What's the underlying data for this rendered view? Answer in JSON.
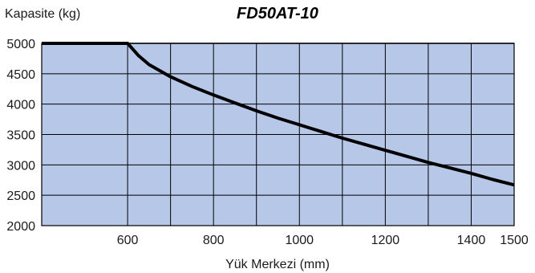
{
  "chart_data": {
    "type": "line",
    "title": "FD50AT-10",
    "xlabel": "Yük Merkezi (mm)",
    "ylabel": "Kapasite (kg)",
    "xlim": [
      400,
      1500
    ],
    "ylim": [
      2000,
      5000
    ],
    "x_ticks": [
      600,
      800,
      1000,
      1200,
      1400,
      1500
    ],
    "y_ticks": [
      2000,
      2500,
      3000,
      3500,
      4000,
      4500,
      5000
    ],
    "x_gridlines": [
      600,
      700,
      800,
      900,
      1000,
      1100,
      1200,
      1300,
      1400,
      1500
    ],
    "y_gridlines": [
      2000,
      2500,
      3000,
      3500,
      4000,
      4500,
      5000
    ],
    "grid": true,
    "series": [
      {
        "x": [
          400,
          500,
          600,
          625,
          650,
          700,
          750,
          800,
          850,
          900,
          950,
          1000,
          1050,
          1100,
          1150,
          1200,
          1250,
          1300,
          1350,
          1400,
          1450,
          1500
        ],
        "y": [
          5000,
          5000,
          5000,
          4800,
          4650,
          4450,
          4290,
          4150,
          4020,
          3890,
          3770,
          3660,
          3550,
          3440,
          3340,
          3240,
          3140,
          3040,
          2950,
          2860,
          2760,
          2670
        ]
      }
    ]
  },
  "colors": {
    "plot_fill": "#b7c7e8",
    "grid": "#000000",
    "line": "#000000"
  }
}
